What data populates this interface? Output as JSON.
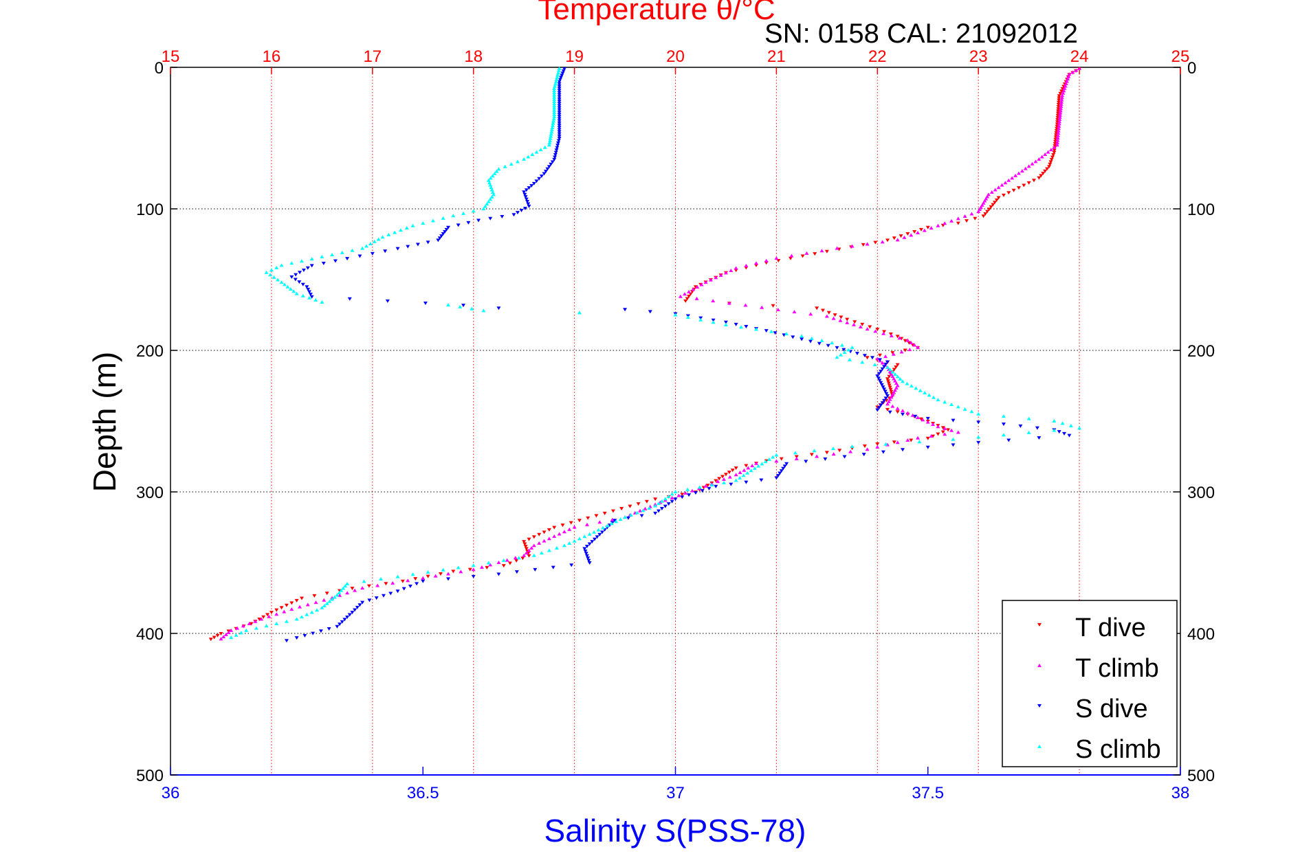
{
  "chart_data": {
    "type": "scatter",
    "title": "Temperature θ/°C",
    "subtitle": "SN: 0158  CAL: 21092012",
    "xlabel": "Salinity S(PSS-78)",
    "ylabel": "Depth (m)",
    "x_top": {
      "label": "Temperature θ/°C",
      "range": [
        15,
        25
      ],
      "ticks": [
        "15",
        "16",
        "17",
        "18",
        "19",
        "20",
        "21",
        "22",
        "23",
        "24",
        "25"
      ],
      "tick_values": [
        15,
        16,
        17,
        18,
        19,
        20,
        21,
        22,
        23,
        24,
        25
      ],
      "grid": true,
      "color": "#ff0000"
    },
    "x_bottom": {
      "label": "Salinity S(PSS-78)",
      "range": [
        36,
        38
      ],
      "ticks": [
        "36",
        "36.5",
        "37",
        "37.5",
        "38"
      ],
      "tick_values": [
        36,
        36.5,
        37,
        37.5,
        38
      ],
      "color": "#0000ff"
    },
    "y": {
      "label": "Depth (m)",
      "range": [
        0,
        500
      ],
      "reversed": true,
      "ticks": [
        "0",
        "100",
        "200",
        "300",
        "400",
        "500"
      ],
      "tick_values": [
        0,
        100,
        200,
        300,
        400,
        500
      ],
      "grid": true
    },
    "legend": {
      "placement": "bottom-right",
      "entries": [
        "T dive",
        "T climb",
        "S dive",
        "S climb"
      ]
    },
    "series": [
      {
        "name": "T dive",
        "axis": "temperature",
        "marker": "triangle-down",
        "color": "#ff0000",
        "points": [
          [
            24.0,
            1
          ],
          [
            23.9,
            5
          ],
          [
            23.8,
            20
          ],
          [
            23.78,
            40
          ],
          [
            23.75,
            60
          ],
          [
            23.7,
            70
          ],
          [
            23.6,
            78
          ],
          [
            23.4,
            85
          ],
          [
            23.2,
            92
          ],
          [
            23.05,
            105
          ],
          [
            22.8,
            110
          ],
          [
            22.5,
            113
          ],
          [
            22.1,
            122
          ],
          [
            21.5,
            130
          ],
          [
            20.9,
            138
          ],
          [
            20.5,
            145
          ],
          [
            20.2,
            155
          ],
          [
            20.1,
            165
          ],
          [
            21.4,
            170
          ],
          [
            21.7,
            178
          ],
          [
            22.0,
            185
          ],
          [
            22.2,
            190
          ],
          [
            22.35,
            196
          ],
          [
            22.4,
            198
          ],
          [
            21.9,
            205
          ],
          [
            22.2,
            210
          ],
          [
            22.1,
            220
          ],
          [
            22.15,
            232
          ],
          [
            22.0,
            240
          ],
          [
            22.3,
            245
          ],
          [
            22.5,
            250
          ],
          [
            22.7,
            256
          ],
          [
            22.5,
            262
          ],
          [
            22.0,
            266
          ],
          [
            21.5,
            272
          ],
          [
            20.9,
            278
          ],
          [
            20.6,
            283
          ],
          [
            20.4,
            292
          ],
          [
            20.2,
            300
          ],
          [
            19.8,
            305
          ],
          [
            19.3,
            315
          ],
          [
            18.8,
            325
          ],
          [
            18.5,
            335
          ],
          [
            18.55,
            345
          ],
          [
            18.3,
            352
          ],
          [
            17.8,
            356
          ],
          [
            17.3,
            363
          ],
          [
            16.8,
            368
          ],
          [
            16.3,
            375
          ],
          [
            16.0,
            385
          ],
          [
            15.8,
            393
          ],
          [
            15.5,
            400
          ],
          [
            15.4,
            404
          ]
        ]
      },
      {
        "name": "T climb",
        "axis": "temperature",
        "marker": "triangle-up",
        "color": "#ff00ff",
        "points": [
          [
            24.0,
            1
          ],
          [
            23.9,
            5
          ],
          [
            23.83,
            20
          ],
          [
            23.8,
            40
          ],
          [
            23.78,
            55
          ],
          [
            23.6,
            65
          ],
          [
            23.3,
            80
          ],
          [
            23.1,
            90
          ],
          [
            23.0,
            102
          ],
          [
            22.6,
            112
          ],
          [
            22.2,
            122
          ],
          [
            21.6,
            128
          ],
          [
            21.0,
            135
          ],
          [
            20.6,
            142
          ],
          [
            20.3,
            152
          ],
          [
            20.05,
            162
          ],
          [
            21.5,
            176
          ],
          [
            21.9,
            185
          ],
          [
            22.3,
            193
          ],
          [
            22.4,
            198
          ],
          [
            22.0,
            206
          ],
          [
            22.1,
            212
          ],
          [
            22.2,
            225
          ],
          [
            22.1,
            238
          ],
          [
            22.35,
            246
          ],
          [
            22.6,
            254
          ],
          [
            22.8,
            258
          ],
          [
            22.4,
            262
          ],
          [
            21.9,
            270
          ],
          [
            21.4,
            275
          ],
          [
            20.8,
            280
          ],
          [
            20.6,
            288
          ],
          [
            20.3,
            296
          ],
          [
            19.9,
            306
          ],
          [
            19.5,
            318
          ],
          [
            19.0,
            325
          ],
          [
            18.6,
            338
          ],
          [
            18.5,
            345
          ],
          [
            18.0,
            355
          ],
          [
            17.5,
            361
          ],
          [
            16.9,
            368
          ],
          [
            16.6,
            375
          ],
          [
            16.2,
            383
          ],
          [
            15.9,
            390
          ],
          [
            15.6,
            398
          ],
          [
            15.5,
            404
          ]
        ]
      },
      {
        "name": "S dive",
        "axis": "salinity",
        "marker": "triangle-down",
        "color": "#0000ff",
        "points": [
          [
            36.78,
            1
          ],
          [
            36.77,
            10
          ],
          [
            36.77,
            30
          ],
          [
            36.77,
            50
          ],
          [
            36.76,
            65
          ],
          [
            36.74,
            75
          ],
          [
            36.72,
            82
          ],
          [
            36.7,
            88
          ],
          [
            36.71,
            98
          ],
          [
            36.68,
            104
          ],
          [
            36.61,
            108
          ],
          [
            36.55,
            113
          ],
          [
            36.53,
            122
          ],
          [
            36.45,
            128
          ],
          [
            36.35,
            135
          ],
          [
            36.28,
            140
          ],
          [
            36.24,
            148
          ],
          [
            36.27,
            155
          ],
          [
            36.28,
            162
          ],
          [
            36.58,
            168
          ],
          [
            36.65,
            170
          ],
          [
            36.9,
            171
          ],
          [
            37.0,
            174
          ],
          [
            37.1,
            180
          ],
          [
            37.18,
            186
          ],
          [
            37.25,
            192
          ],
          [
            37.32,
            198
          ],
          [
            37.36,
            202
          ],
          [
            37.42,
            208
          ],
          [
            37.4,
            218
          ],
          [
            37.42,
            232
          ],
          [
            37.4,
            242
          ],
          [
            37.5,
            248
          ],
          [
            37.65,
            252
          ],
          [
            37.75,
            256
          ],
          [
            37.78,
            260
          ],
          [
            37.6,
            265
          ],
          [
            37.45,
            270
          ],
          [
            37.22,
            280
          ],
          [
            37.2,
            290
          ],
          [
            37.08,
            296
          ],
          [
            37.0,
            305
          ],
          [
            36.96,
            315
          ],
          [
            36.88,
            320
          ],
          [
            36.85,
            330
          ],
          [
            36.82,
            340
          ],
          [
            36.83,
            350
          ],
          [
            36.65,
            358
          ],
          [
            36.5,
            363
          ],
          [
            36.45,
            370
          ],
          [
            36.38,
            378
          ],
          [
            36.36,
            385
          ],
          [
            36.33,
            395
          ],
          [
            36.25,
            403
          ],
          [
            36.23,
            405
          ]
        ]
      },
      {
        "name": "S climb",
        "axis": "salinity",
        "marker": "triangle-up",
        "color": "#00ffff",
        "points": [
          [
            36.77,
            1
          ],
          [
            36.76,
            15
          ],
          [
            36.76,
            35
          ],
          [
            36.75,
            55
          ],
          [
            36.7,
            65
          ],
          [
            36.65,
            72
          ],
          [
            36.63,
            80
          ],
          [
            36.64,
            90
          ],
          [
            36.62,
            100
          ],
          [
            36.56,
            105
          ],
          [
            36.48,
            112
          ],
          [
            36.42,
            120
          ],
          [
            36.38,
            128
          ],
          [
            36.3,
            134
          ],
          [
            36.22,
            140
          ],
          [
            36.19,
            145
          ],
          [
            36.22,
            152
          ],
          [
            36.25,
            160
          ],
          [
            36.3,
            166
          ],
          [
            36.55,
            168
          ],
          [
            36.62,
            172
          ],
          [
            37.0,
            175
          ],
          [
            37.1,
            182
          ],
          [
            37.25,
            190
          ],
          [
            37.35,
            198
          ],
          [
            37.32,
            205
          ],
          [
            37.42,
            212
          ],
          [
            37.45,
            222
          ],
          [
            37.52,
            235
          ],
          [
            37.6,
            245
          ],
          [
            37.75,
            250
          ],
          [
            37.8,
            255
          ],
          [
            37.55,
            263
          ],
          [
            37.35,
            268
          ],
          [
            37.2,
            274
          ],
          [
            37.15,
            285
          ],
          [
            37.12,
            292
          ],
          [
            37.0,
            300
          ],
          [
            36.96,
            310
          ],
          [
            36.9,
            318
          ],
          [
            36.83,
            330
          ],
          [
            36.78,
            338
          ],
          [
            36.72,
            345
          ],
          [
            36.6,
            352
          ],
          [
            36.45,
            360
          ],
          [
            36.35,
            365
          ],
          [
            36.33,
            373
          ],
          [
            36.3,
            382
          ],
          [
            36.25,
            390
          ],
          [
            36.15,
            398
          ],
          [
            36.12,
            403
          ]
        ]
      }
    ]
  }
}
